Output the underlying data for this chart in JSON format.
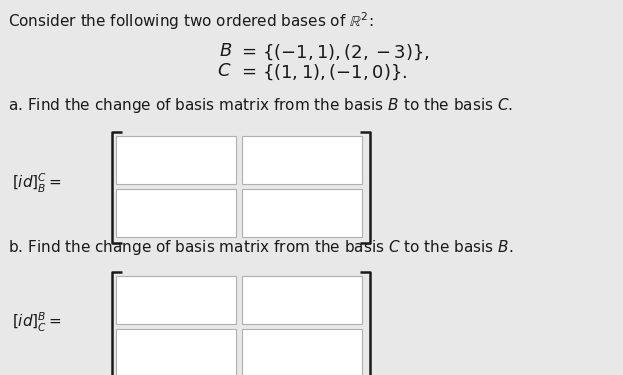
{
  "bg_color": "#e8e8e8",
  "title_text": "Consider the following two ordered bases of $\\mathbb{R}^2$:",
  "basis_B_label": "$\\mathit{B}$",
  "basis_C_label": "$\\mathit{C}$",
  "basis_B_eq": "$\\{(-1,1),(2,-3)\\},$",
  "basis_C_eq": "$\\{(1,1),(-1,0)\\}.$",
  "eq_sign": "$=$",
  "part_a_text": "a. Find the change of basis matrix from the basis $\\mathit{B}$ to the basis $\\mathit{C}$.",
  "part_b_text": "b. Find the change of basis matrix from the basis $\\mathit{C}$ to the basis $\\mathit{B}$.",
  "label_a": "$[id]^{C}_{B} =$",
  "label_b": "$[id]^{B}_{C} =$",
  "box_fill": "#ffffff",
  "box_edge": "#b0b0b0",
  "bracket_color": "#1a1a1a",
  "text_color": "#1a1a1a",
  "title_fontsize": 11,
  "basis_fontsize": 13,
  "part_fontsize": 11,
  "label_fontsize": 11
}
